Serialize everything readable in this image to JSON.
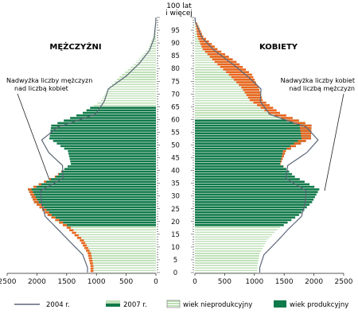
{
  "chart_data": {
    "type": "bar",
    "orientation": "horizontal-population-pyramid",
    "title": "",
    "top_label_line1": "100 lat",
    "top_label_line2": "i więcej",
    "left_title": "MĘŻCZYŹNI",
    "right_title": "KOBIETY",
    "annotation_left_line1": "Nadwyżka liczby mężczyzn",
    "annotation_left_line2": "nad liczbą kobiet",
    "annotation_right_line1": "Nadwyżka liczby kobiet",
    "annotation_right_line2": "nad liczbą mężczyzn",
    "age_ticks": [
      "0",
      "5",
      "10",
      "15",
      "20",
      "25",
      "30",
      "35",
      "40",
      "45",
      "50",
      "55",
      "60",
      "65",
      "70",
      "75",
      "80",
      "85",
      "90",
      "95"
    ],
    "x_ticks_left": [
      "2500",
      "2000",
      "1500",
      "1000",
      "500",
      "0"
    ],
    "x_ticks_right": [
      "0",
      "500",
      "1000",
      "1500",
      "2000",
      "2500"
    ],
    "xlim": [
      0,
      2500
    ],
    "ylim": [
      0,
      100
    ],
    "working_age": {
      "male": [
        18,
        64
      ],
      "female": [
        18,
        59
      ]
    },
    "age_groups": [
      {
        "age_from": 0,
        "age_to": 4,
        "male_2007": 1100,
        "female_2007": 1050,
        "male_2004": 1150,
        "female_2004": 1090
      },
      {
        "age_from": 5,
        "age_to": 9,
        "male_2007": 1150,
        "female_2007": 1090,
        "male_2004": 1230,
        "female_2004": 1160
      },
      {
        "age_from": 10,
        "age_to": 14,
        "male_2007": 1280,
        "female_2007": 1210,
        "male_2004": 1440,
        "female_2004": 1370
      },
      {
        "age_from": 15,
        "age_to": 19,
        "male_2007": 1500,
        "female_2007": 1430,
        "male_2004": 1650,
        "female_2004": 1570
      },
      {
        "age_from": 20,
        "age_to": 24,
        "male_2007": 1820,
        "female_2007": 1750,
        "male_2004": 1860,
        "female_2004": 1790
      },
      {
        "age_from": 25,
        "age_to": 29,
        "male_2007": 2050,
        "female_2007": 1970,
        "male_2004": 1920,
        "female_2004": 1850
      },
      {
        "age_from": 30,
        "age_to": 34,
        "male_2007": 2150,
        "female_2007": 2090,
        "male_2004": 1940,
        "female_2004": 1870
      },
      {
        "age_from": 35,
        "age_to": 39,
        "male_2007": 1700,
        "female_2007": 1680,
        "male_2004": 1560,
        "female_2004": 1530
      },
      {
        "age_from": 40,
        "age_to": 44,
        "male_2007": 1430,
        "female_2007": 1440,
        "male_2004": 1570,
        "female_2004": 1560
      },
      {
        "age_from": 45,
        "age_to": 49,
        "male_2007": 1480,
        "female_2007": 1530,
        "male_2004": 1800,
        "female_2004": 1880
      },
      {
        "age_from": 50,
        "age_to": 54,
        "male_2007": 1790,
        "female_2007": 1950,
        "male_2004": 1920,
        "female_2004": 2070
      },
      {
        "age_from": 55,
        "age_to": 59,
        "male_2007": 1760,
        "female_2007": 1960,
        "male_2004": 1650,
        "female_2004": 1870
      },
      {
        "age_from": 60,
        "age_to": 64,
        "male_2007": 1230,
        "female_2007": 1430,
        "male_2004": 1020,
        "female_2004": 1260
      },
      {
        "age_from": 65,
        "age_to": 69,
        "male_2007": 920,
        "female_2007": 1140,
        "male_2004": 870,
        "female_2004": 1100
      },
      {
        "age_from": 70,
        "age_to": 74,
        "male_2007": 780,
        "female_2007": 1070,
        "male_2004": 800,
        "female_2004": 1110
      },
      {
        "age_from": 75,
        "age_to": 79,
        "male_2007": 570,
        "female_2007": 960,
        "male_2004": 500,
        "female_2004": 880
      },
      {
        "age_from": 80,
        "age_to": 84,
        "male_2007": 330,
        "female_2007": 700,
        "male_2004": 280,
        "female_2004": 620
      },
      {
        "age_from": 85,
        "age_to": 89,
        "male_2007": 130,
        "female_2007": 380,
        "male_2004": 110,
        "female_2004": 330
      },
      {
        "age_from": 90,
        "age_to": 94,
        "male_2007": 40,
        "female_2007": 140,
        "male_2004": 30,
        "female_2004": 120
      },
      {
        "age_from": 95,
        "age_to": 100,
        "male_2007": 8,
        "female_2007": 30,
        "male_2004": 6,
        "female_2004": 25
      }
    ],
    "legend": [
      {
        "label": "2004 r.",
        "kind": "line"
      },
      {
        "label": "2007 r.",
        "kind": "bar"
      },
      {
        "label": "wiek nieprodukcyjny",
        "kind": "swatch"
      },
      {
        "label": "wiek produkcyjny",
        "kind": "swatch"
      }
    ],
    "colors": {
      "working": "#117a4a",
      "nonworking": "#bfe0b8",
      "nonworking_stripe": "#ffffff",
      "surplus": "#e8661e",
      "line_2004": "#5b6677",
      "axis": "#222222",
      "text": "#111111"
    }
  }
}
